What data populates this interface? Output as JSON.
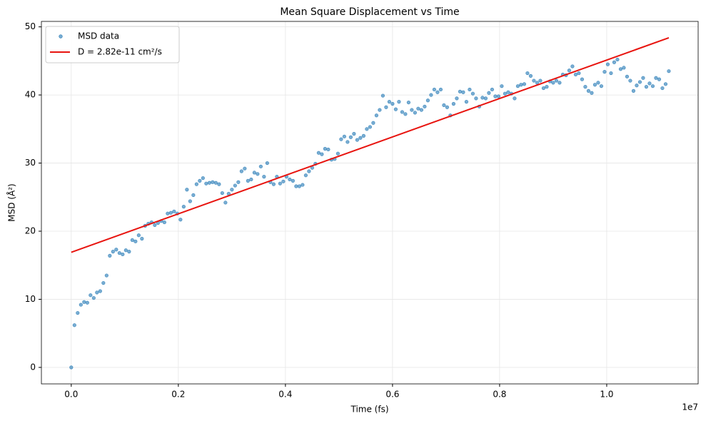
{
  "chart_data": {
    "type": "scatter",
    "title": "Mean Square Displacement vs Time",
    "x_label": "Time (fs)",
    "y_label": "MSD (Å²)",
    "x_offset_label": "1e7",
    "xlim": [
      -557500,
      11707500
    ],
    "ylim": [
      -2.42,
      50.8
    ],
    "xticks": [
      {
        "value": 0,
        "label": "0.0"
      },
      {
        "value": 2000000,
        "label": "0.2"
      },
      {
        "value": 4000000,
        "label": "0.4"
      },
      {
        "value": 6000000,
        "label": "0.6"
      },
      {
        "value": 8000000,
        "label": "0.8"
      },
      {
        "value": 10000000,
        "label": "1.0"
      }
    ],
    "yticks": [
      0,
      10,
      20,
      30,
      40,
      50
    ],
    "grid": true,
    "legend": "upper left",
    "series": [
      {
        "name": "MSD data",
        "type": "scatter",
        "color": "#1f77b4",
        "x": [
          0,
          60000,
          120000,
          180000,
          240000,
          300000,
          360000,
          420000,
          480000,
          540000,
          600000,
          660000,
          720000,
          780000,
          840000,
          900000,
          960000,
          1020000,
          1080000,
          1140000,
          1200000,
          1260000,
          1320000,
          1380000,
          1440000,
          1500000,
          1560000,
          1620000,
          1680000,
          1740000,
          1800000,
          1860000,
          1920000,
          1980000,
          2040000,
          2100000,
          2160000,
          2220000,
          2280000,
          2340000,
          2400000,
          2460000,
          2520000,
          2580000,
          2640000,
          2700000,
          2760000,
          2820000,
          2880000,
          2940000,
          3000000,
          3060000,
          3120000,
          3180000,
          3240000,
          3300000,
          3360000,
          3420000,
          3480000,
          3540000,
          3600000,
          3660000,
          3720000,
          3780000,
          3840000,
          3900000,
          3960000,
          4020000,
          4080000,
          4140000,
          4200000,
          4260000,
          4320000,
          4380000,
          4440000,
          4500000,
          4560000,
          4620000,
          4680000,
          4740000,
          4800000,
          4860000,
          4920000,
          4980000,
          5040000,
          5100000,
          5160000,
          5220000,
          5280000,
          5340000,
          5400000,
          5460000,
          5520000,
          5580000,
          5640000,
          5700000,
          5760000,
          5820000,
          5880000,
          5940000,
          6000000,
          6060000,
          6120000,
          6180000,
          6240000,
          6300000,
          6360000,
          6420000,
          6480000,
          6540000,
          6600000,
          6660000,
          6720000,
          6780000,
          6840000,
          6900000,
          6960000,
          7020000,
          7080000,
          7140000,
          7200000,
          7260000,
          7320000,
          7380000,
          7440000,
          7500000,
          7560000,
          7620000,
          7680000,
          7740000,
          7800000,
          7860000,
          7920000,
          7980000,
          8040000,
          8100000,
          8160000,
          8220000,
          8280000,
          8340000,
          8400000,
          8460000,
          8520000,
          8580000,
          8640000,
          8700000,
          8760000,
          8820000,
          8880000,
          8940000,
          9000000,
          9060000,
          9120000,
          9180000,
          9240000,
          9300000,
          9360000,
          9420000,
          9480000,
          9540000,
          9600000,
          9660000,
          9720000,
          9780000,
          9840000,
          9900000,
          9960000,
          10020000,
          10080000,
          10140000,
          10200000,
          10260000,
          10320000,
          10380000,
          10440000,
          10500000,
          10560000,
          10620000,
          10680000,
          10740000,
          10800000,
          10860000,
          10920000,
          10980000,
          11040000,
          11100000,
          11160000
        ],
        "values": [
          0,
          6.2,
          8.0,
          9.2,
          9.6,
          9.5,
          10.6,
          10.2,
          11.0,
          11.2,
          12.4,
          13.5,
          16.4,
          17.0,
          17.3,
          16.8,
          16.6,
          17.2,
          17.0,
          18.7,
          18.5,
          19.4,
          18.9,
          20.8,
          21.1,
          21.3,
          20.9,
          21.2,
          21.5,
          21.3,
          22.6,
          22.7,
          22.9,
          22.6,
          21.7,
          23.6,
          26.1,
          24.4,
          25.3,
          26.9,
          27.4,
          27.8,
          27.0,
          27.1,
          27.2,
          27.1,
          26.9,
          25.6,
          24.2,
          25.5,
          26.1,
          26.7,
          27.2,
          28.8,
          29.2,
          27.4,
          27.6,
          28.6,
          28.4,
          29.5,
          28.0,
          30.0,
          27.2,
          26.9,
          28.0,
          27.0,
          27.3,
          28.0,
          27.6,
          27.4,
          26.6,
          26.6,
          26.8,
          28.2,
          28.8,
          29.3,
          29.9,
          31.5,
          31.3,
          32.1,
          32.0,
          30.5,
          30.6,
          31.4,
          33.5,
          33.9,
          33.1,
          33.8,
          34.3,
          33.4,
          33.7,
          34.0,
          35.0,
          35.3,
          35.9,
          37.0,
          37.8,
          39.9,
          38.2,
          39.0,
          38.7,
          37.9,
          39.0,
          37.5,
          37.2,
          38.9,
          37.8,
          37.4,
          38.0,
          37.8,
          38.3,
          39.2,
          40.0,
          40.8,
          40.4,
          40.8,
          38.5,
          38.2,
          37.0,
          38.7,
          39.5,
          40.5,
          40.4,
          39.0,
          40.8,
          40.2,
          39.5,
          38.3,
          39.6,
          39.5,
          40.3,
          40.8,
          39.8,
          39.8,
          41.3,
          40.2,
          40.4,
          40.2,
          39.5,
          41.3,
          41.5,
          41.6,
          43.2,
          42.8,
          42.1,
          41.8,
          42.1,
          41.0,
          41.2,
          42.0,
          41.8,
          42.1,
          41.8,
          43.0,
          42.9,
          43.6,
          44.2,
          43.0,
          43.2,
          42.3,
          41.2,
          40.6,
          40.3,
          41.5,
          41.8,
          41.3,
          43.4,
          44.5,
          43.2,
          44.8,
          45.2,
          43.8,
          44.0,
          42.7,
          42.1,
          40.6,
          41.4,
          41.9,
          42.5,
          41.2,
          41.7,
          41.3,
          42.5,
          42.3,
          41.0,
          41.6,
          43.5
        ]
      },
      {
        "name": "D = 2.82e-11 cm²/s",
        "type": "line",
        "color": "#e8140f",
        "x": [
          0,
          11160000
        ],
        "values": [
          16.9,
          48.4
        ]
      }
    ]
  }
}
